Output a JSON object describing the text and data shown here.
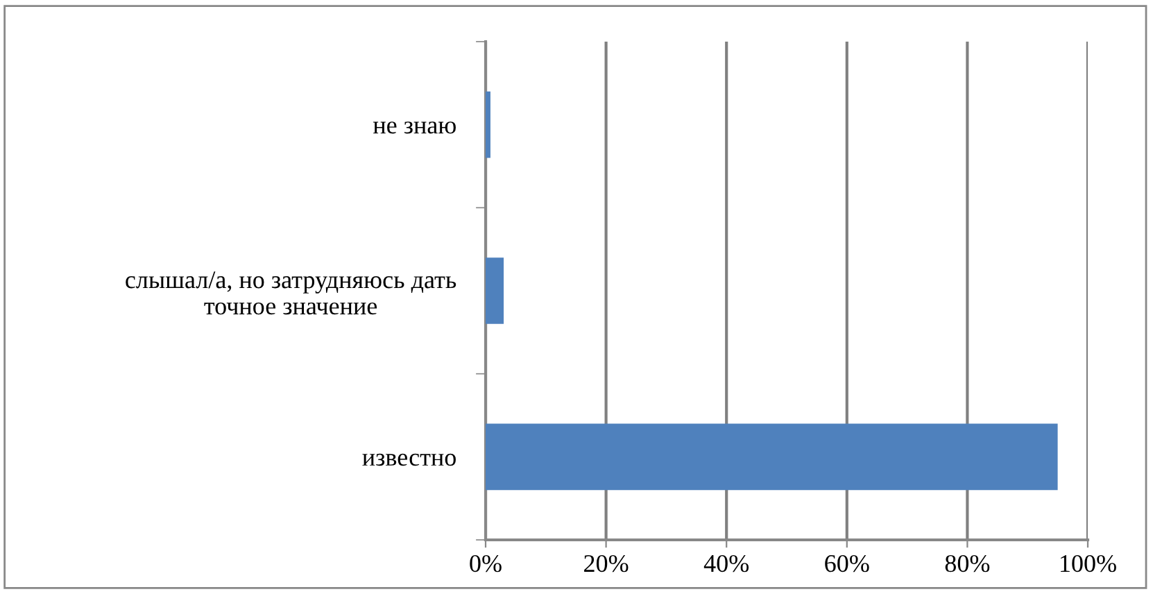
{
  "chart_data": {
    "type": "bar",
    "orientation": "horizontal",
    "categories": [
      "не знаю",
      "слышал/а, но затрудняюсь дать\nточное значение",
      "известно"
    ],
    "values": [
      0.8,
      3,
      95
    ],
    "color": "#4f81bd",
    "xlim": [
      0,
      100
    ],
    "xticks": [
      {
        "value": 0,
        "label": "0%"
      },
      {
        "value": 20,
        "label": "20%"
      },
      {
        "value": 40,
        "label": "40%"
      },
      {
        "value": 60,
        "label": "60%"
      },
      {
        "value": 80,
        "label": "80%"
      },
      {
        "value": 100,
        "label": "100%"
      }
    ],
    "grid": "x",
    "legend": false
  }
}
